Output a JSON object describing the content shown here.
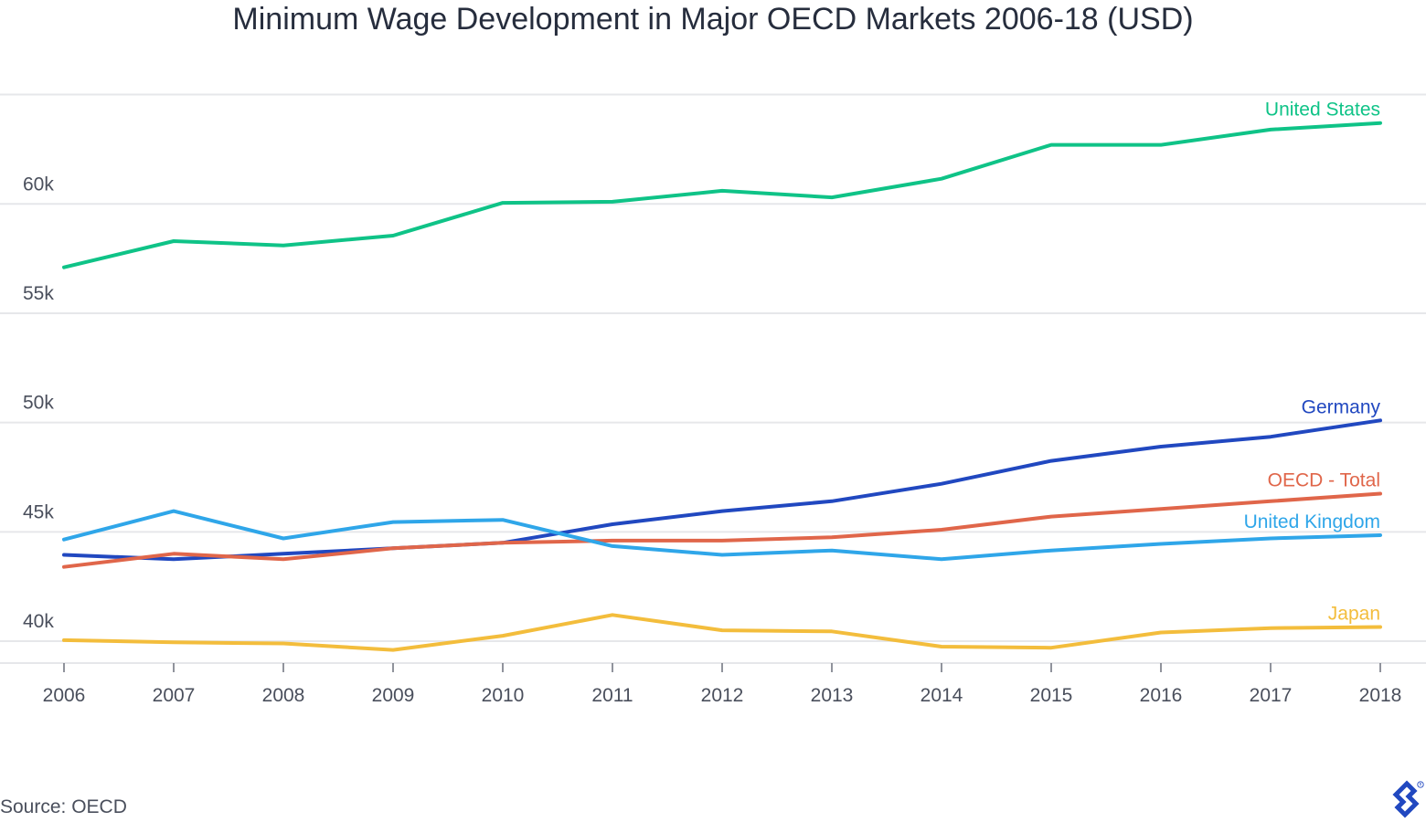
{
  "chart_data": {
    "type": "line",
    "title": "Minimum Wage Development in Major OECD Markets 2006-18 (USD)",
    "x": [
      2006,
      2007,
      2008,
      2009,
      2010,
      2011,
      2012,
      2013,
      2014,
      2015,
      2016,
      2017,
      2018
    ],
    "y_ticks": [
      40000,
      45000,
      50000,
      55000,
      60000
    ],
    "y_tick_labels": [
      "40k",
      "45k",
      "50k",
      "55k",
      "60k"
    ],
    "ylim": [
      39000,
      65000
    ],
    "grid": true,
    "legend": "inline labels at line ends",
    "series": [
      {
        "name": "United States",
        "color": "#0fc387",
        "values": [
          57100,
          58300,
          58100,
          58550,
          60050,
          60100,
          60600,
          60300,
          61150,
          62700,
          62700,
          63400,
          63700
        ]
      },
      {
        "name": "Germany",
        "color": "#2148c0",
        "values": [
          43950,
          43750,
          44000,
          44250,
          44500,
          45350,
          45950,
          46400,
          47200,
          48250,
          48900,
          49350,
          50100
        ]
      },
      {
        "name": "OECD - Total",
        "color": "#e0664a",
        "values": [
          43400,
          44000,
          43750,
          44250,
          44500,
          44600,
          44600,
          44750,
          45100,
          45700,
          46050,
          46400,
          46750
        ]
      },
      {
        "name": "United Kingdom",
        "color": "#2fa6e9",
        "values": [
          44650,
          45950,
          44700,
          45450,
          45550,
          44350,
          43950,
          44150,
          43750,
          44150,
          44450,
          44700,
          44850
        ]
      },
      {
        "name": "Japan",
        "color": "#f3bd3c",
        "values": [
          40050,
          39950,
          39900,
          39600,
          40250,
          41200,
          40500,
          40450,
          39750,
          39700,
          40400,
          40600,
          40650
        ]
      }
    ]
  },
  "source": "Source: OECD",
  "logo": {
    "icon": "toptal-logo-icon",
    "color": "#2148c0"
  }
}
